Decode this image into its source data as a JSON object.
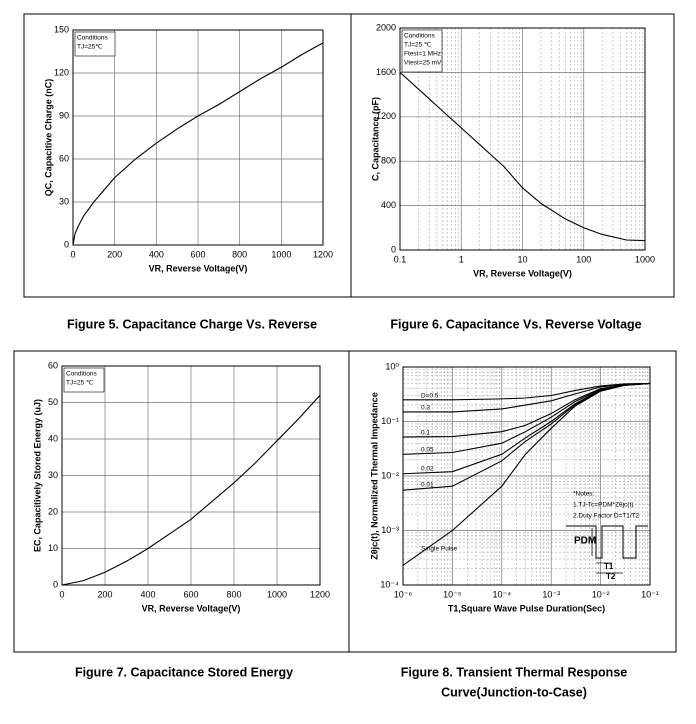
{
  "chart_data": [
    {
      "type": "line",
      "caption": "Figure 5. Capacitance Charge Vs. Reverse",
      "xlabel": "VR,  Reverse Voltage(V)",
      "ylabel": "QC, Capacitive Charge (nC)",
      "annotations": [
        "Conditions",
        "TJ=25℃"
      ],
      "x": [
        0,
        10,
        25,
        50,
        100,
        200,
        300,
        400,
        500,
        600,
        700,
        800,
        900,
        1000,
        1100,
        1200
      ],
      "series": [
        {
          "color": "#000000",
          "values": [
            0,
            8,
            13,
            20,
            30,
            47,
            60,
            71,
            81,
            90,
            98,
            107,
            116,
            124,
            133,
            141
          ]
        }
      ],
      "xlim": [
        0,
        1200
      ],
      "xticks": [
        0,
        200,
        400,
        600,
        800,
        1000,
        1200
      ],
      "ylim": [
        0,
        150
      ],
      "yticks": [
        0,
        30,
        60,
        90,
        120,
        150
      ],
      "grid": true
    },
    {
      "type": "line",
      "caption": "Figure 6. Capacitance Vs. Reverse Voltage",
      "xlabel": "VR, Reverse Voltage(V)",
      "ylabel": "C, Capacitance (pF)",
      "annotations": [
        "Conditions",
        "TJ=25 ℃",
        "Ftest=1 MHz",
        "Vtest=25 mV"
      ],
      "xscale": "log",
      "x": [
        0.1,
        0.2,
        0.5,
        1,
        2,
        5,
        10,
        20,
        50,
        100,
        200,
        500,
        1000
      ],
      "series": [
        {
          "color": "#000000",
          "values": [
            1600,
            1450,
            1250,
            1100,
            950,
            750,
            560,
            420,
            280,
            200,
            140,
            90,
            85
          ]
        }
      ],
      "xlim": [
        0.1,
        1000
      ],
      "xticks": [
        0.1,
        1,
        10,
        100,
        1000
      ],
      "ylim": [
        0,
        2000
      ],
      "yticks": [
        0,
        400,
        800,
        1200,
        1600,
        2000
      ],
      "grid": true
    },
    {
      "type": "line",
      "caption": "Figure 7. Capacitance Stored Energy",
      "xlabel": "VR,  Reverse Voltage(V)",
      "ylabel": "EC, Capacitively Stored Energy (uJ)",
      "annotations": [
        "Conditions",
        "TJ=25 ℃"
      ],
      "x": [
        0,
        100,
        200,
        300,
        400,
        500,
        600,
        700,
        800,
        900,
        1000,
        1100,
        1200
      ],
      "series": [
        {
          "color": "#000000",
          "values": [
            0,
            1.2,
            3.5,
            6.5,
            10,
            14,
            18,
            23,
            28,
            33.5,
            39.5,
            45.5,
            52
          ]
        }
      ],
      "xlim": [
        0,
        1200
      ],
      "xticks": [
        0,
        200,
        400,
        600,
        800,
        1000,
        1200
      ],
      "ylim": [
        0,
        60
      ],
      "yticks": [
        0,
        10,
        20,
        30,
        40,
        50,
        60
      ],
      "grid": true
    },
    {
      "type": "line",
      "caption": [
        "Figure 8. Transient Thermal Response",
        "Curve(Junction-to-Case)"
      ],
      "xlabel": "T1,Square Wave Pulse Duration(Sec)",
      "ylabel": "Zθjc(t), Normalized Thermal Impedance",
      "notes": [
        "*Notes:",
        "1.TJ-Tc=PDM*Zθjc(t)",
        "2.Duty Factor D=T1/T2"
      ],
      "diagram_labels": [
        "PDM",
        "T1",
        "T2"
      ],
      "xscale": "log",
      "yscale": "log",
      "x": [
        1e-06,
        1e-05,
        0.0001,
        0.0003,
        0.001,
        0.003,
        0.01,
        0.03,
        0.1
      ],
      "series": [
        {
          "name": "D=0.5",
          "color": "#000000",
          "values": [
            0.25,
            0.25,
            0.26,
            0.27,
            0.3,
            0.37,
            0.45,
            0.49,
            0.5
          ]
        },
        {
          "name": "0.3",
          "color": "#000000",
          "values": [
            0.15,
            0.15,
            0.17,
            0.2,
            0.24,
            0.32,
            0.43,
            0.48,
            0.5
          ]
        },
        {
          "name": "0.1",
          "color": "#000000",
          "values": [
            0.052,
            0.053,
            0.065,
            0.085,
            0.14,
            0.25,
            0.4,
            0.47,
            0.5
          ]
        },
        {
          "name": "0.05",
          "color": "#000000",
          "values": [
            0.025,
            0.027,
            0.04,
            0.065,
            0.12,
            0.23,
            0.39,
            0.47,
            0.5
          ]
        },
        {
          "name": "0.02",
          "color": "#000000",
          "values": [
            0.011,
            0.012,
            0.025,
            0.05,
            0.1,
            0.21,
            0.38,
            0.46,
            0.5
          ]
        },
        {
          "name": "0.01",
          "color": "#000000",
          "values": [
            0.0055,
            0.0065,
            0.019,
            0.043,
            0.09,
            0.2,
            0.37,
            0.46,
            0.5
          ]
        },
        {
          "name": "Single Pulse",
          "color": "#000000",
          "values": [
            0.00023,
            0.001,
            0.0065,
            0.025,
            0.075,
            0.19,
            0.36,
            0.46,
            0.5
          ]
        }
      ],
      "xlim": [
        1e-06,
        0.1
      ],
      "xticks": [
        {
          "value": 1e-06,
          "label": "10⁻⁶"
        },
        {
          "value": 1e-05,
          "label": "10⁻⁵"
        },
        {
          "value": 0.0001,
          "label": "10⁻⁴"
        },
        {
          "value": 0.001,
          "label": "10⁻³"
        },
        {
          "value": 0.01,
          "label": "10⁻²"
        },
        {
          "value": 0.1,
          "label": "10⁻¹"
        }
      ],
      "ylim": [
        0.0001,
        1
      ],
      "yticks": [
        {
          "value": 0.0001,
          "label": "10⁻⁴"
        },
        {
          "value": 0.001,
          "label": "10⁻³"
        },
        {
          "value": 0.01,
          "label": "10⁻²"
        },
        {
          "value": 0.1,
          "label": "10⁻¹"
        },
        {
          "value": 1,
          "label": "10⁰"
        }
      ],
      "grid": true
    }
  ]
}
